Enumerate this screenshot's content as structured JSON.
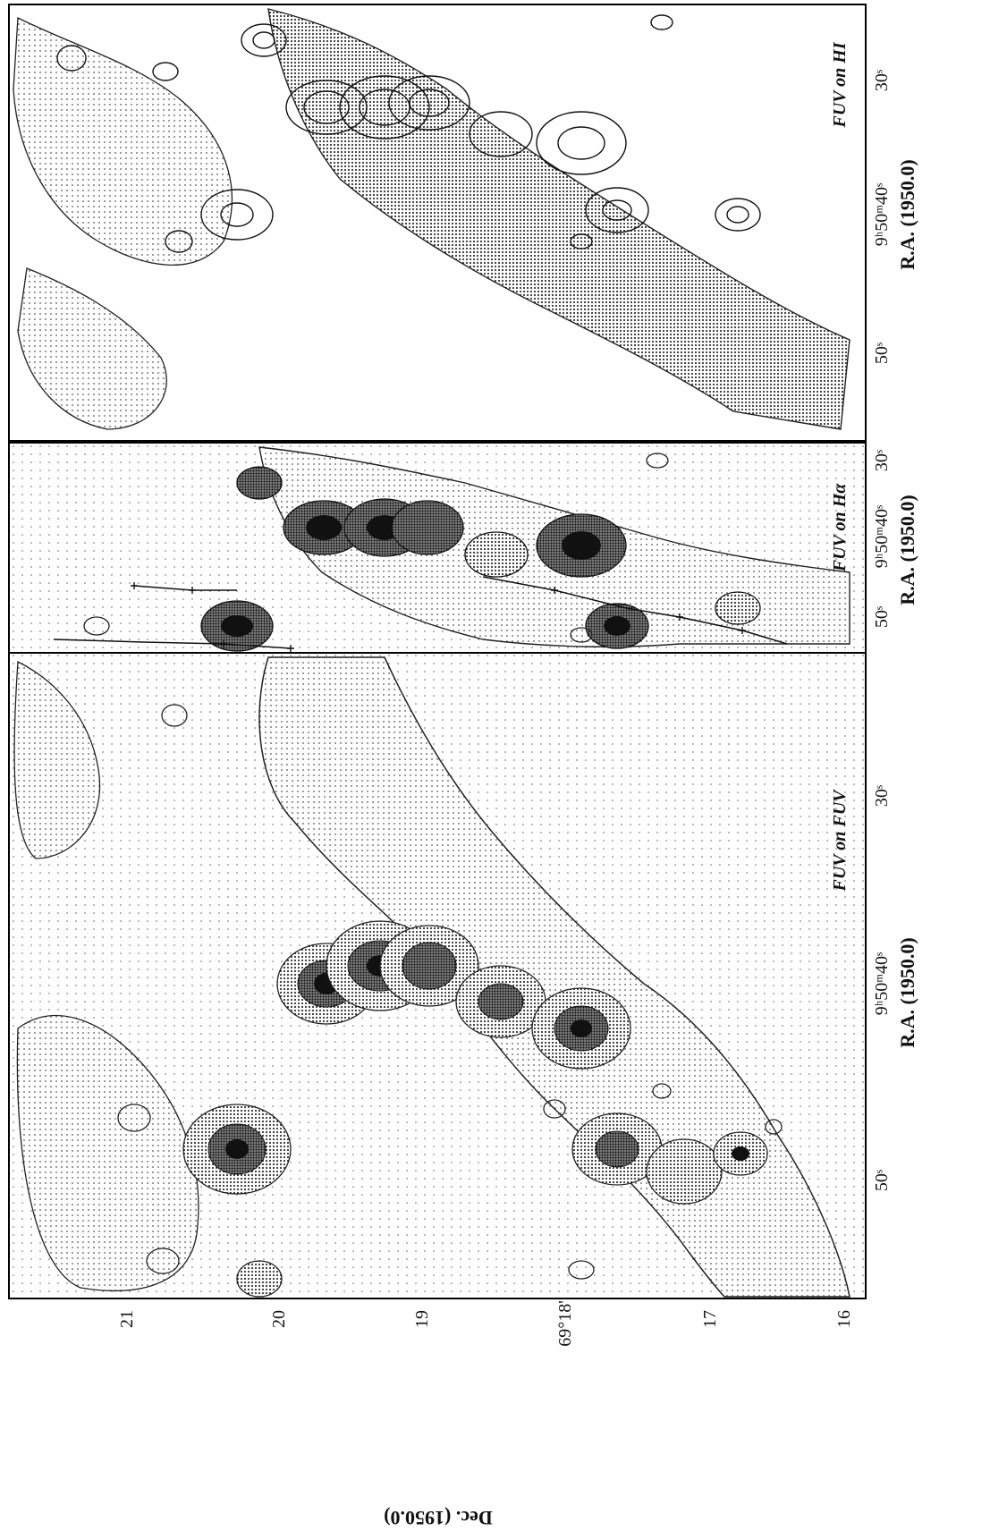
{
  "figure": {
    "panels": [
      {
        "label": "FUV on FUV",
        "ra_ticks": [
          "50ˢ",
          "9ʰ50ᵐ40ˢ",
          "30ˢ"
        ],
        "ra_axis_label": "R.A. (1950.0)"
      },
      {
        "label": "FUV on Hα",
        "ra_ticks": [
          "50ˢ",
          "9ʰ50ᵐ40ˢ",
          "30ˢ"
        ],
        "ra_axis_label": "R.A. (1950.0)"
      },
      {
        "label": "FUV on HI",
        "ra_ticks": [
          "50ˢ",
          "9ʰ50ᵐ40ˢ",
          "30ˢ"
        ],
        "ra_axis_label": "R.A. (1950.0)"
      }
    ],
    "dec_ticks": [
      "21",
      "20",
      "19",
      "69°18'",
      "17",
      "16"
    ],
    "dec_axis_label": "Dec. (1950.0)"
  }
}
